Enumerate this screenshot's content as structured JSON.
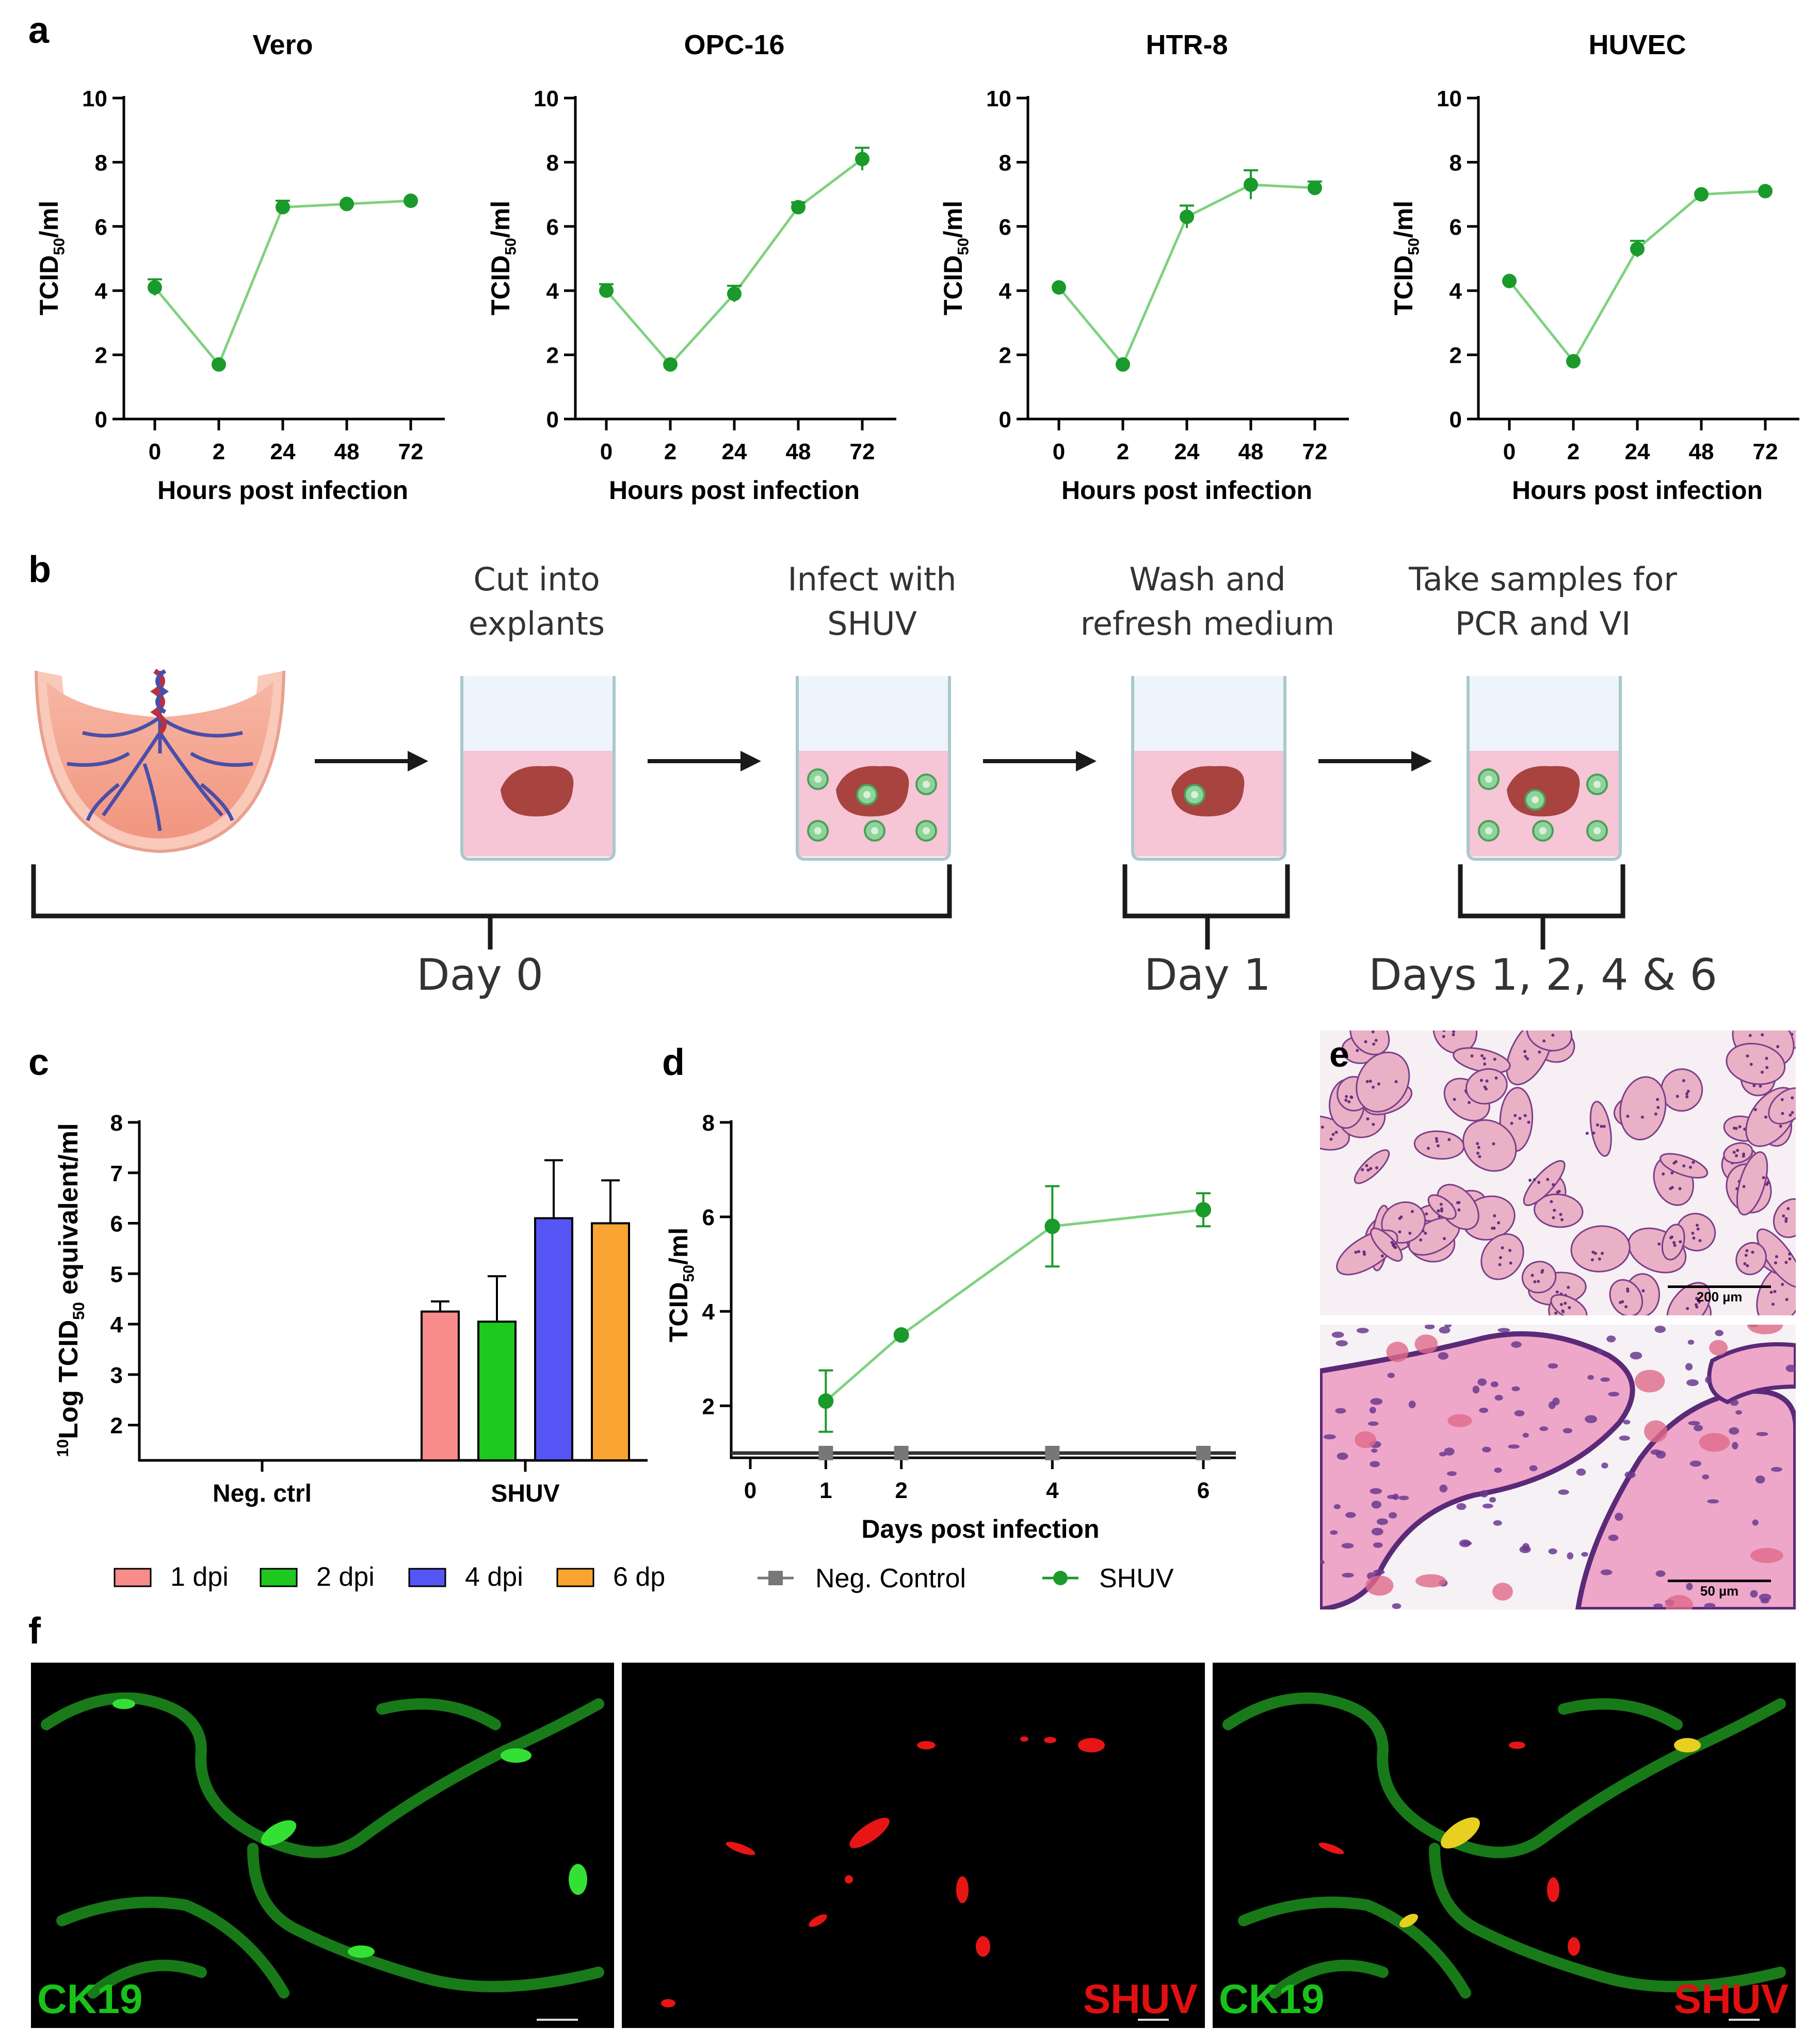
{
  "panel_letters": {
    "a": "a",
    "b": "b",
    "c": "c",
    "d": "d",
    "e": "e",
    "f": "f"
  },
  "chart_data": [
    {
      "panel": "a",
      "type": "line",
      "title": "Vero",
      "xlabel": "Hours post infection",
      "ylabel": "TCID50/ml",
      "ylabel_main": "TCID",
      "ylabel_sub": "50",
      "ylabel_rest": "/ml",
      "categories": [
        "0",
        "2",
        "24",
        "48",
        "72"
      ],
      "values": [
        4.1,
        1.7,
        6.6,
        6.7,
        6.8
      ],
      "errors": [
        0.25,
        0.05,
        0.2,
        0.05,
        0.05
      ],
      "ylim": [
        0,
        10
      ],
      "yticks": [
        "0",
        "2",
        "4",
        "6",
        "8",
        "10"
      ],
      "color": "#1a9a2a",
      "linecolor": "#7fd17f"
    },
    {
      "panel": "a",
      "type": "line",
      "title": "OPC-16",
      "xlabel": "Hours post infection",
      "ylabel": "TCID50/ml",
      "ylabel_main": "TCID",
      "ylabel_sub": "50",
      "ylabel_rest": "/ml",
      "categories": [
        "0",
        "2",
        "24",
        "48",
        "72"
      ],
      "values": [
        4.0,
        1.7,
        3.9,
        6.6,
        8.1
      ],
      "errors": [
        0.2,
        0.05,
        0.25,
        0.15,
        0.35
      ],
      "ylim": [
        0,
        10
      ],
      "yticks": [
        "0",
        "2",
        "4",
        "6",
        "8",
        "10"
      ],
      "color": "#1a9a2a",
      "linecolor": "#7fd17f"
    },
    {
      "panel": "a",
      "type": "line",
      "title": "HTR-8",
      "xlabel": "Hours post infection",
      "ylabel": "TCID50/ml",
      "ylabel_main": "TCID",
      "ylabel_sub": "50",
      "ylabel_rest": "/ml",
      "categories": [
        "0",
        "2",
        "24",
        "48",
        "72"
      ],
      "values": [
        4.1,
        1.7,
        6.3,
        7.3,
        7.2
      ],
      "errors": [
        0.05,
        0.05,
        0.35,
        0.45,
        0.2
      ],
      "ylim": [
        0,
        10
      ],
      "yticks": [
        "0",
        "2",
        "4",
        "6",
        "8",
        "10"
      ],
      "color": "#1a9a2a",
      "linecolor": "#7fd17f"
    },
    {
      "panel": "a",
      "type": "line",
      "title": "HUVEC",
      "xlabel": "Hours post infection",
      "ylabel": "TCID50/ml",
      "ylabel_main": "TCID",
      "ylabel_sub": "50",
      "ylabel_rest": "/ml",
      "categories": [
        "0",
        "2",
        "24",
        "48",
        "72"
      ],
      "values": [
        4.3,
        1.8,
        5.3,
        7.0,
        7.1
      ],
      "errors": [
        0.05,
        0.05,
        0.25,
        0.05,
        0.05
      ],
      "ylim": [
        0,
        10
      ],
      "yticks": [
        "0",
        "2",
        "4",
        "6",
        "8",
        "10"
      ],
      "color": "#1a9a2a",
      "linecolor": "#7fd17f"
    },
    {
      "panel": "c",
      "type": "bar",
      "ylabel": "10Log TCID50 equivalent/ml",
      "ylabel_sup": "10",
      "ylabel_main": "Log TCID",
      "ylabel_sub": "50",
      "ylabel_rest": " equivalent/ml",
      "groups": [
        "Neg. ctrl",
        "SHUV"
      ],
      "series": [
        {
          "name": "1 dpi",
          "values": [
            null,
            4.25
          ],
          "errors": [
            null,
            0.2
          ],
          "color": "#f98b8b"
        },
        {
          "name": "2 dpi",
          "values": [
            null,
            4.05
          ],
          "errors": [
            null,
            0.9
          ],
          "color": "#1ec81e"
        },
        {
          "name": "4 dpi",
          "values": [
            null,
            6.1
          ],
          "errors": [
            null,
            1.15
          ],
          "color": "#5555f5"
        },
        {
          "name": "6 dpi",
          "values": [
            null,
            6.0
          ],
          "errors": [
            null,
            0.85
          ],
          "color": "#f9a433"
        }
      ],
      "ylim": [
        1.3,
        8
      ],
      "yticks": [
        "2",
        "3",
        "4",
        "5",
        "6",
        "7",
        "8"
      ]
    },
    {
      "panel": "d",
      "type": "line",
      "xlabel": "Days post infection",
      "ylabel": "TCID50/ml",
      "ylabel_main": "TCID",
      "ylabel_sub": "50",
      "ylabel_rest": "/ml",
      "x": [
        0,
        1,
        2,
        4,
        6
      ],
      "xticks": [
        "0",
        "1",
        "2",
        "4",
        "6"
      ],
      "series": [
        {
          "name": "Neg. Control",
          "x": [
            1,
            2,
            4,
            6
          ],
          "values": [
            1.0,
            1.0,
            1.0,
            1.0
          ],
          "errors": [
            0,
            0,
            0,
            0
          ],
          "color": "#777777",
          "marker": "square"
        },
        {
          "name": "SHUV",
          "x": [
            1,
            2,
            4,
            6
          ],
          "values": [
            2.1,
            3.5,
            5.8,
            6.15
          ],
          "errors": [
            0.65,
            0.05,
            0.85,
            0.35
          ],
          "color": "#1a9a2a",
          "linecolor": "#7fd17f",
          "marker": "circle"
        }
      ],
      "xlim": [
        0,
        6
      ],
      "ylim": [
        0.9,
        8
      ],
      "yticks": [
        "2",
        "4",
        "6",
        "8"
      ]
    }
  ],
  "legend_c": [
    {
      "label": "1 dpi",
      "color": "#f98b8b"
    },
    {
      "label": "2 dpi",
      "color": "#1ec81e"
    },
    {
      "label": "4 dpi",
      "color": "#5555f5"
    },
    {
      "label": "6 dpi",
      "color": "#f9a433"
    }
  ],
  "legend_d": [
    {
      "label": "Neg. Control",
      "color": "#777777",
      "marker": "square"
    },
    {
      "label": "SHUV",
      "color": "#1a9a2a",
      "marker": "circle"
    }
  ],
  "workflow": {
    "steps": [
      {
        "line1": "Cut into",
        "line2": "explants"
      },
      {
        "line1": "Infect with",
        "line2": "SHUV"
      },
      {
        "line1": "Wash and",
        "line2": "refresh medium"
      },
      {
        "line1": "Take samples for",
        "line2": "PCR and VI"
      }
    ],
    "days": [
      "Day 0",
      "Day 1",
      "Days 1, 2, 4 & 6"
    ]
  },
  "histology": {
    "scale_top": "200 µm",
    "scale_bottom": "50 µm"
  },
  "fluorescence": {
    "panel1_label": "CK19",
    "panel2_label": "SHUV",
    "panel3_label_left": "CK19",
    "panel3_label_right": "SHUV",
    "green": "#19c219",
    "red": "#e01010"
  }
}
